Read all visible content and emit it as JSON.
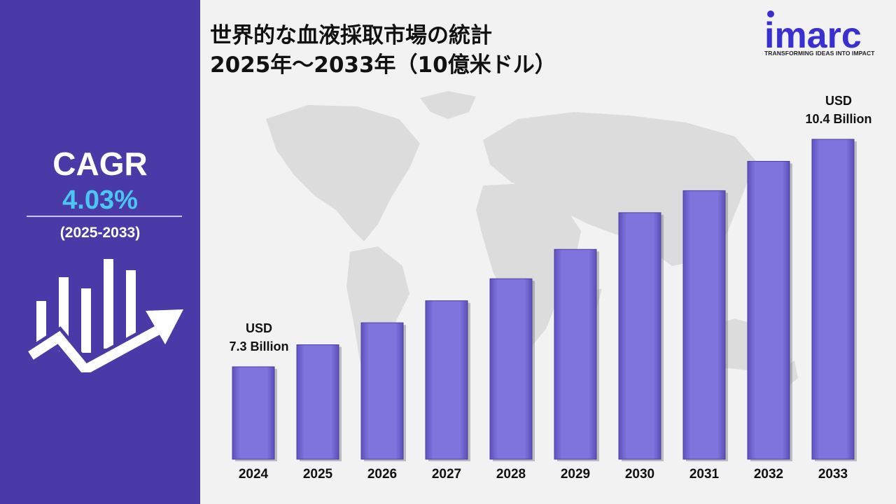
{
  "sidebar": {
    "cagr_label": "CAGR",
    "cagr_value": "4.03%",
    "cagr_period": "(2025-2033)",
    "icon": "growth-chart-icon"
  },
  "title": {
    "line1": "世界的な血液採取市場の統計",
    "line2": "2025年～2033年（10億米ドル）"
  },
  "logo": {
    "name": "imarc",
    "tagline": "TRANSFORMING IDEAS INTO IMPACT"
  },
  "colors": {
    "sidebar": "#4a3aa8",
    "bar": "#7a6ed8",
    "accent": "#49c6f2",
    "logo": "#3a2fd0"
  },
  "chart_data": {
    "type": "bar",
    "categories": [
      "2024",
      "2025",
      "2026",
      "2027",
      "2028",
      "2029",
      "2030",
      "2031",
      "2032",
      "2033"
    ],
    "values": [
      7.3,
      7.6,
      7.9,
      8.2,
      8.5,
      8.9,
      9.4,
      9.7,
      10.1,
      10.4
    ],
    "annotations": [
      {
        "category": "2024",
        "line1": "USD",
        "line2": "7.3 Billion"
      },
      {
        "category": "2033",
        "line1": "USD",
        "line2": "10.4 Billion"
      }
    ]
  }
}
